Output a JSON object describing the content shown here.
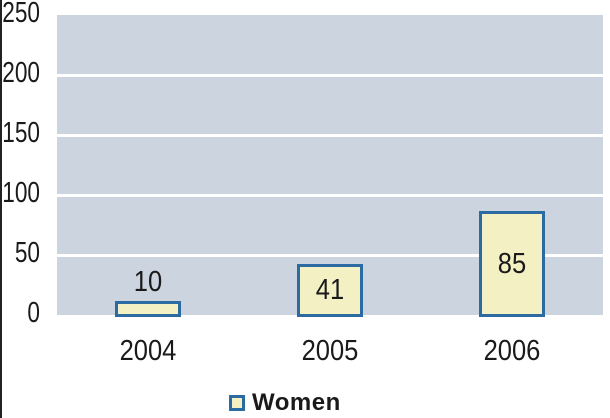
{
  "chart_data": {
    "type": "bar",
    "title": "",
    "categories": [
      "2004",
      "2005",
      "2006"
    ],
    "series": [
      {
        "name": "Women",
        "values": [
          10,
          41,
          85
        ]
      }
    ],
    "ylim": [
      0,
      250
    ],
    "ytick_step": 50,
    "yticks": [
      "0",
      "50",
      "100",
      "150",
      "200",
      "250"
    ],
    "grid": true,
    "legend_position": "bottom",
    "colors": {
      "bar_fill": "#f3f0c4",
      "bar_border": "#2b6ba1",
      "plot_bg": "#ccd4df",
      "gridline": "#ffffff",
      "text": "#1a1a1a"
    }
  },
  "legend": {
    "label": "Women"
  }
}
